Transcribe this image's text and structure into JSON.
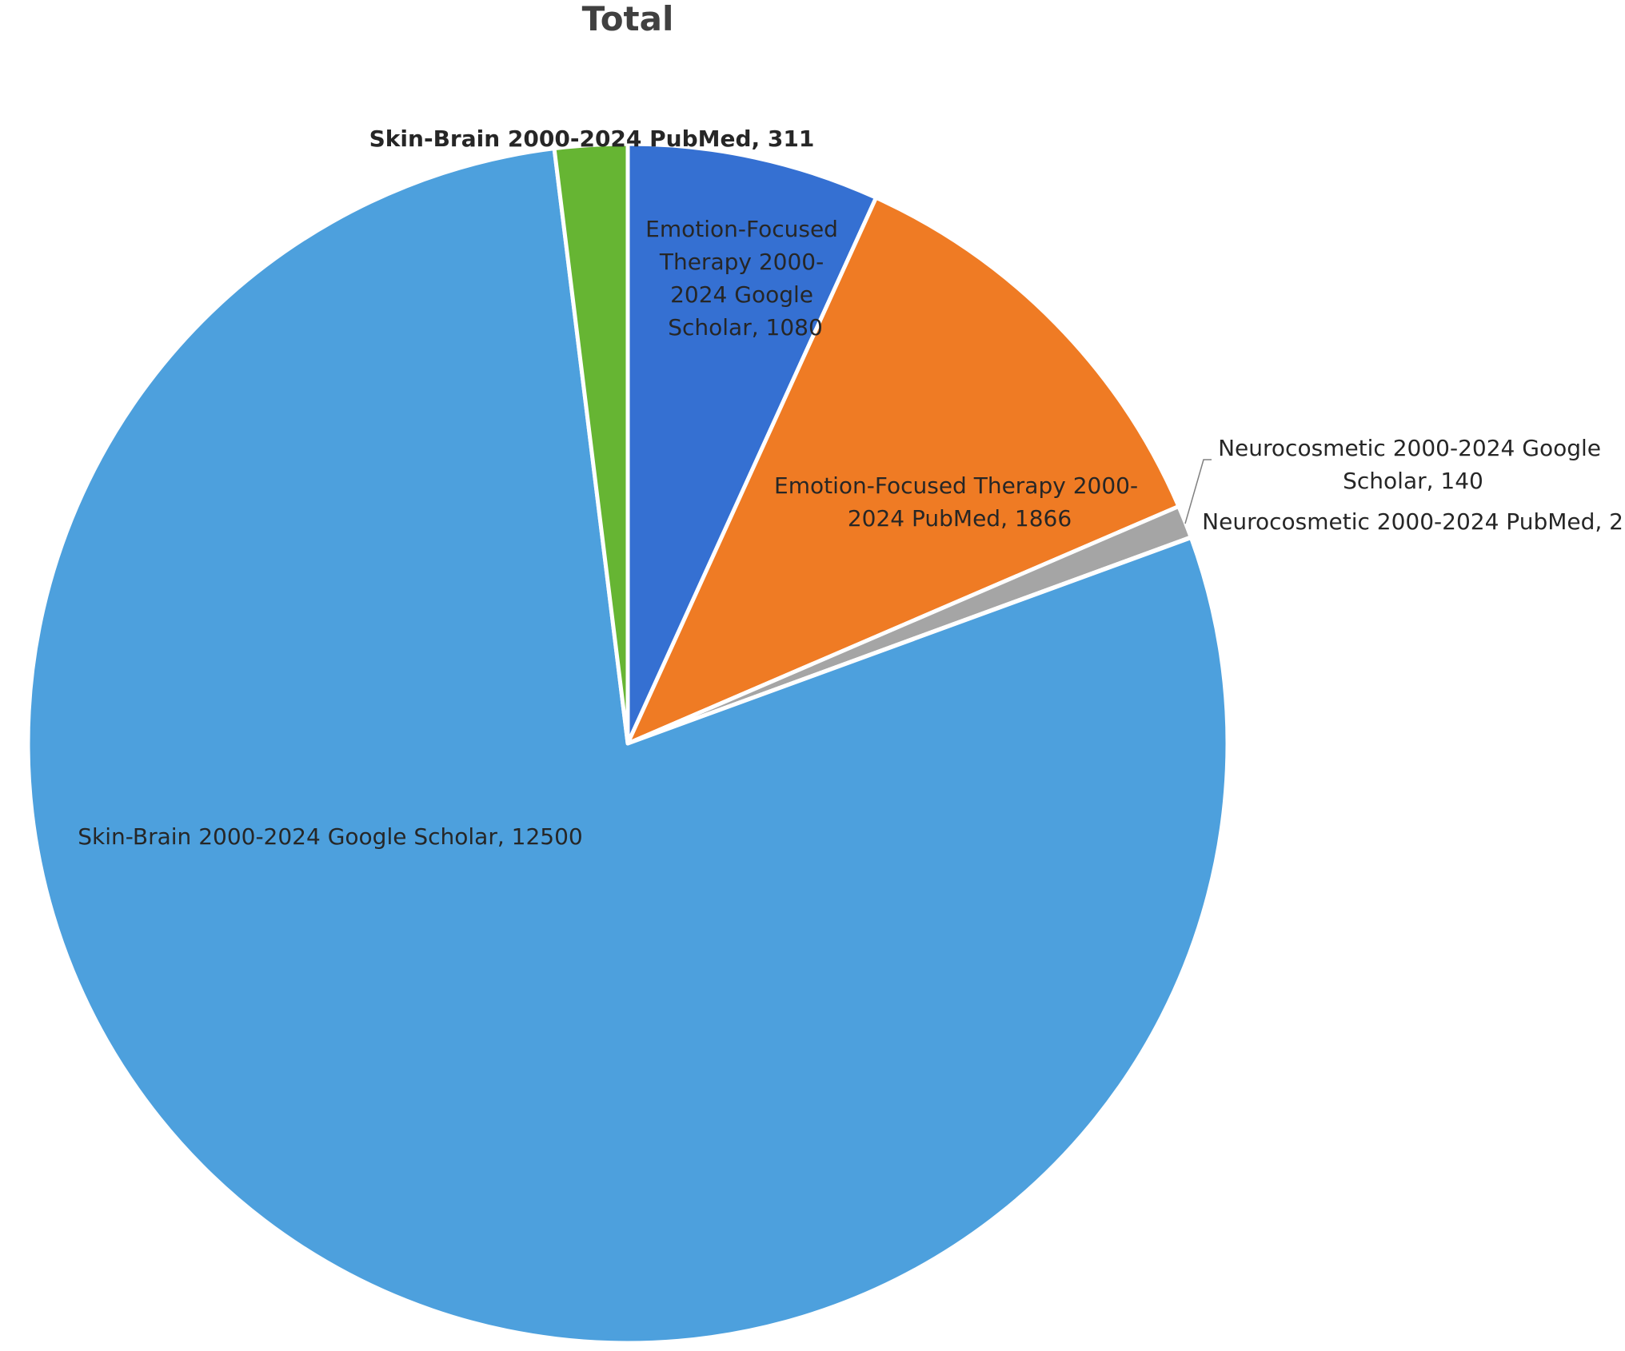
{
  "chart_data": {
    "type": "pie",
    "title": "Total",
    "start_angle_deg": 0,
    "direction": "clockwise",
    "slices": [
      {
        "label": "Emotion-Focused Therapy 2000-2024 Google Scholar",
        "value": 1080,
        "color": "#3570D2",
        "text": "Emotion-Focused Therapy 2000-2024 Google Scholar, 1080"
      },
      {
        "label": "Emotion-Focused Therapy 2000-2024 PubMed",
        "value": 1866,
        "color": "#EF7B24",
        "text": "Emotion-Focused Therapy 2000-2024 PubMed, 1866"
      },
      {
        "label": "Neurocosmetic 2000-2024 Google Scholar",
        "value": 140,
        "color": "#A5A5A5",
        "text": "Neurocosmetic 2000-2024 Google Scholar, 140"
      },
      {
        "label": "Neurocosmetic 2000-2024 PubMed",
        "value": 2,
        "color": "#FFC000",
        "text": "Neurocosmetic 2000-2024 PubMed, 2"
      },
      {
        "label": "Skin-Brain 2000-2024 Google Scholar",
        "value": 12500,
        "color": "#4DA0DD",
        "text": "Skin-Brain 2000-2024 Google Scholar, 12500"
      },
      {
        "label": "Skin-Brain 2000-2024 PubMed",
        "value": 311,
        "color": "#66B533",
        "text": "Skin-Brain 2000-2024 PubMed, 311"
      }
    ],
    "legend": "none"
  }
}
